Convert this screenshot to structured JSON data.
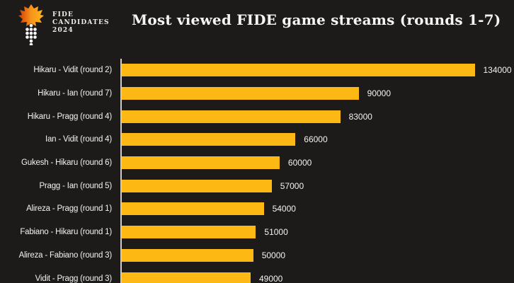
{
  "header": {
    "logo": {
      "line1": "FIDE",
      "line2": "CANDIDATES",
      "line3": "2024"
    },
    "title": "Most viewed FIDE game streams (rounds 1-7)"
  },
  "colors": {
    "background": "#1d1b1a",
    "bar": "#fdb813",
    "text": "#f4f2ef",
    "axis_line": "#cfccc8",
    "logo_orange": "#f7941d",
    "logo_red": "#d43a02",
    "logo_dots": "#ffffff"
  },
  "chart_data": {
    "type": "bar",
    "orientation": "horizontal",
    "title": "Most viewed FIDE game streams (rounds 1-7)",
    "categories": [
      "Hikaru - Vidit (round 2)",
      "Hikaru - Ian (round 7)",
      "Hikaru - Pragg (round 4)",
      "Ian - Vidit (round 4)",
      "Gukesh - Hikaru (round 6)",
      "Pragg - Ian (round 5)",
      "Alireza - Pragg (round 1)",
      "Fabiano - Hikaru (round 1)",
      "Alireza - Fabiano (round 3)",
      "Vidit - Pragg (round 3)"
    ],
    "values": [
      134000,
      90000,
      83000,
      66000,
      60000,
      57000,
      54000,
      51000,
      50000,
      49000
    ],
    "value_labels": [
      "134000",
      "90000",
      "83000",
      "66000",
      "60000",
      "57000",
      "54000",
      "51000",
      "50000",
      "49000"
    ],
    "xlabel": "",
    "ylabel": "",
    "grid": false,
    "legend": false,
    "bar_color": "#fdb813",
    "background_color": "#1d1b1a"
  }
}
